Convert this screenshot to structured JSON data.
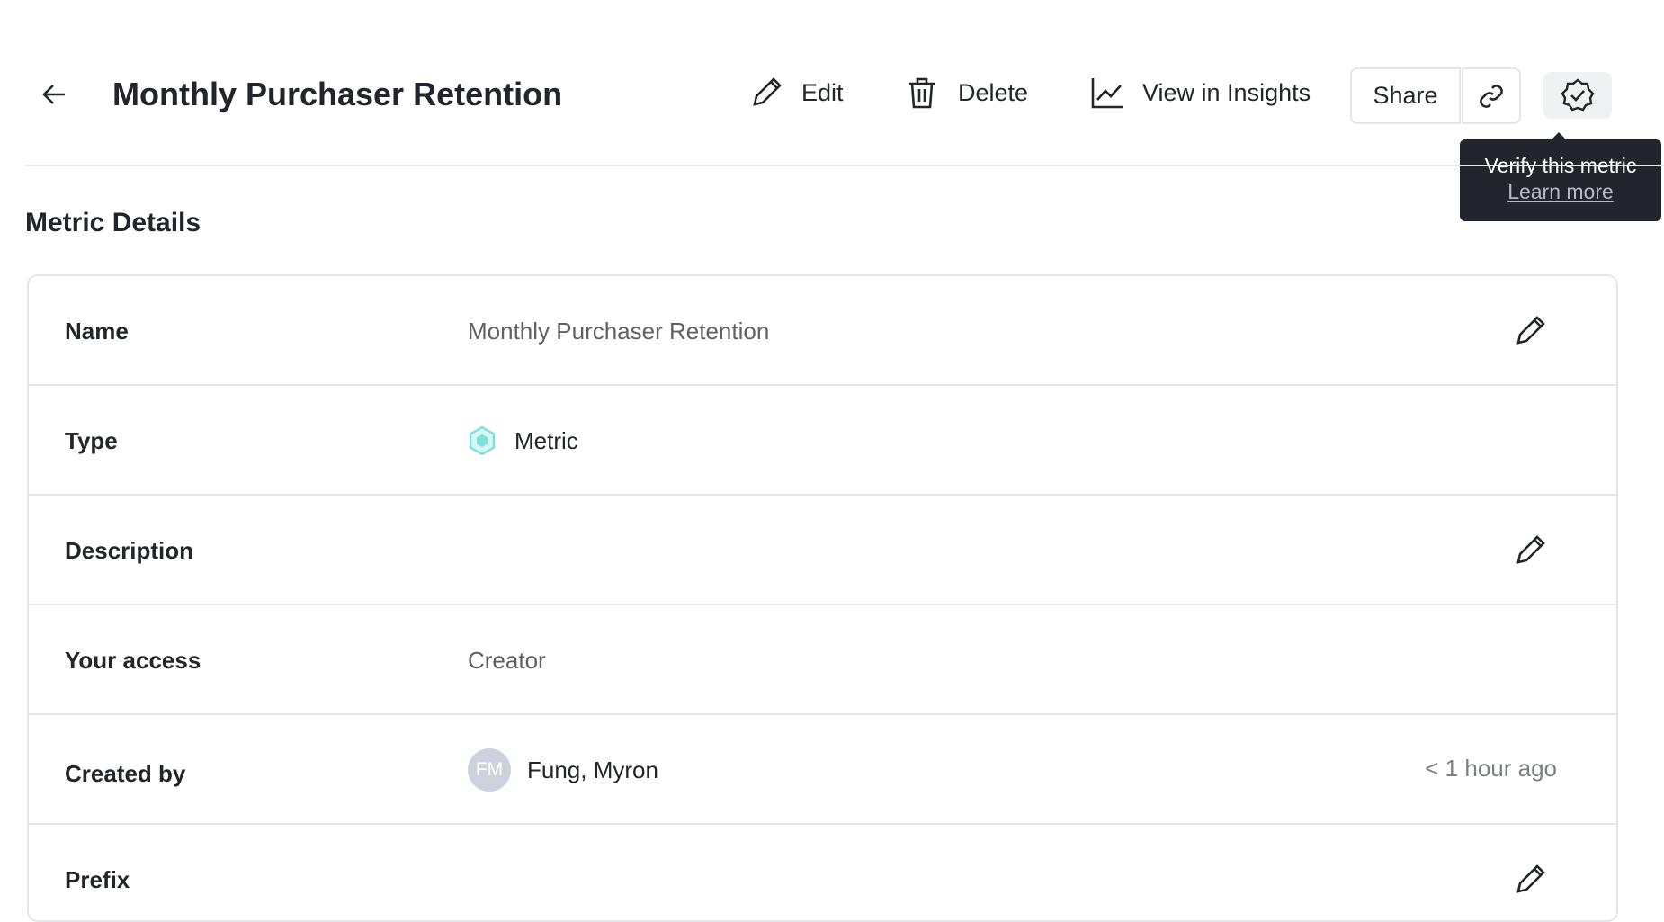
{
  "header": {
    "title": "Monthly Purchaser Retention",
    "edit": "Edit",
    "delete": "Delete",
    "insights": "View in Insights",
    "share": "Share"
  },
  "tooltip": {
    "text": "Verify this metric",
    "link": "Learn more"
  },
  "section_title": "Metric Details",
  "rows": [
    {
      "label": "Name",
      "value": "Monthly Purchaser Retention"
    },
    {
      "label": "Type",
      "value": "Metric"
    },
    {
      "label": "Description",
      "value": ""
    },
    {
      "label": "Your access",
      "value": "Creator"
    },
    {
      "label": "Created by",
      "value": "Fung, Myron",
      "avatar": "FM",
      "meta": "< 1 hour ago"
    },
    {
      "label": "Prefix",
      "value": ""
    }
  ],
  "colors": {
    "metric_icon": "#7ee0da",
    "tooltip_bg": "#22252b",
    "avatar_bg": "#cdd3dd"
  }
}
